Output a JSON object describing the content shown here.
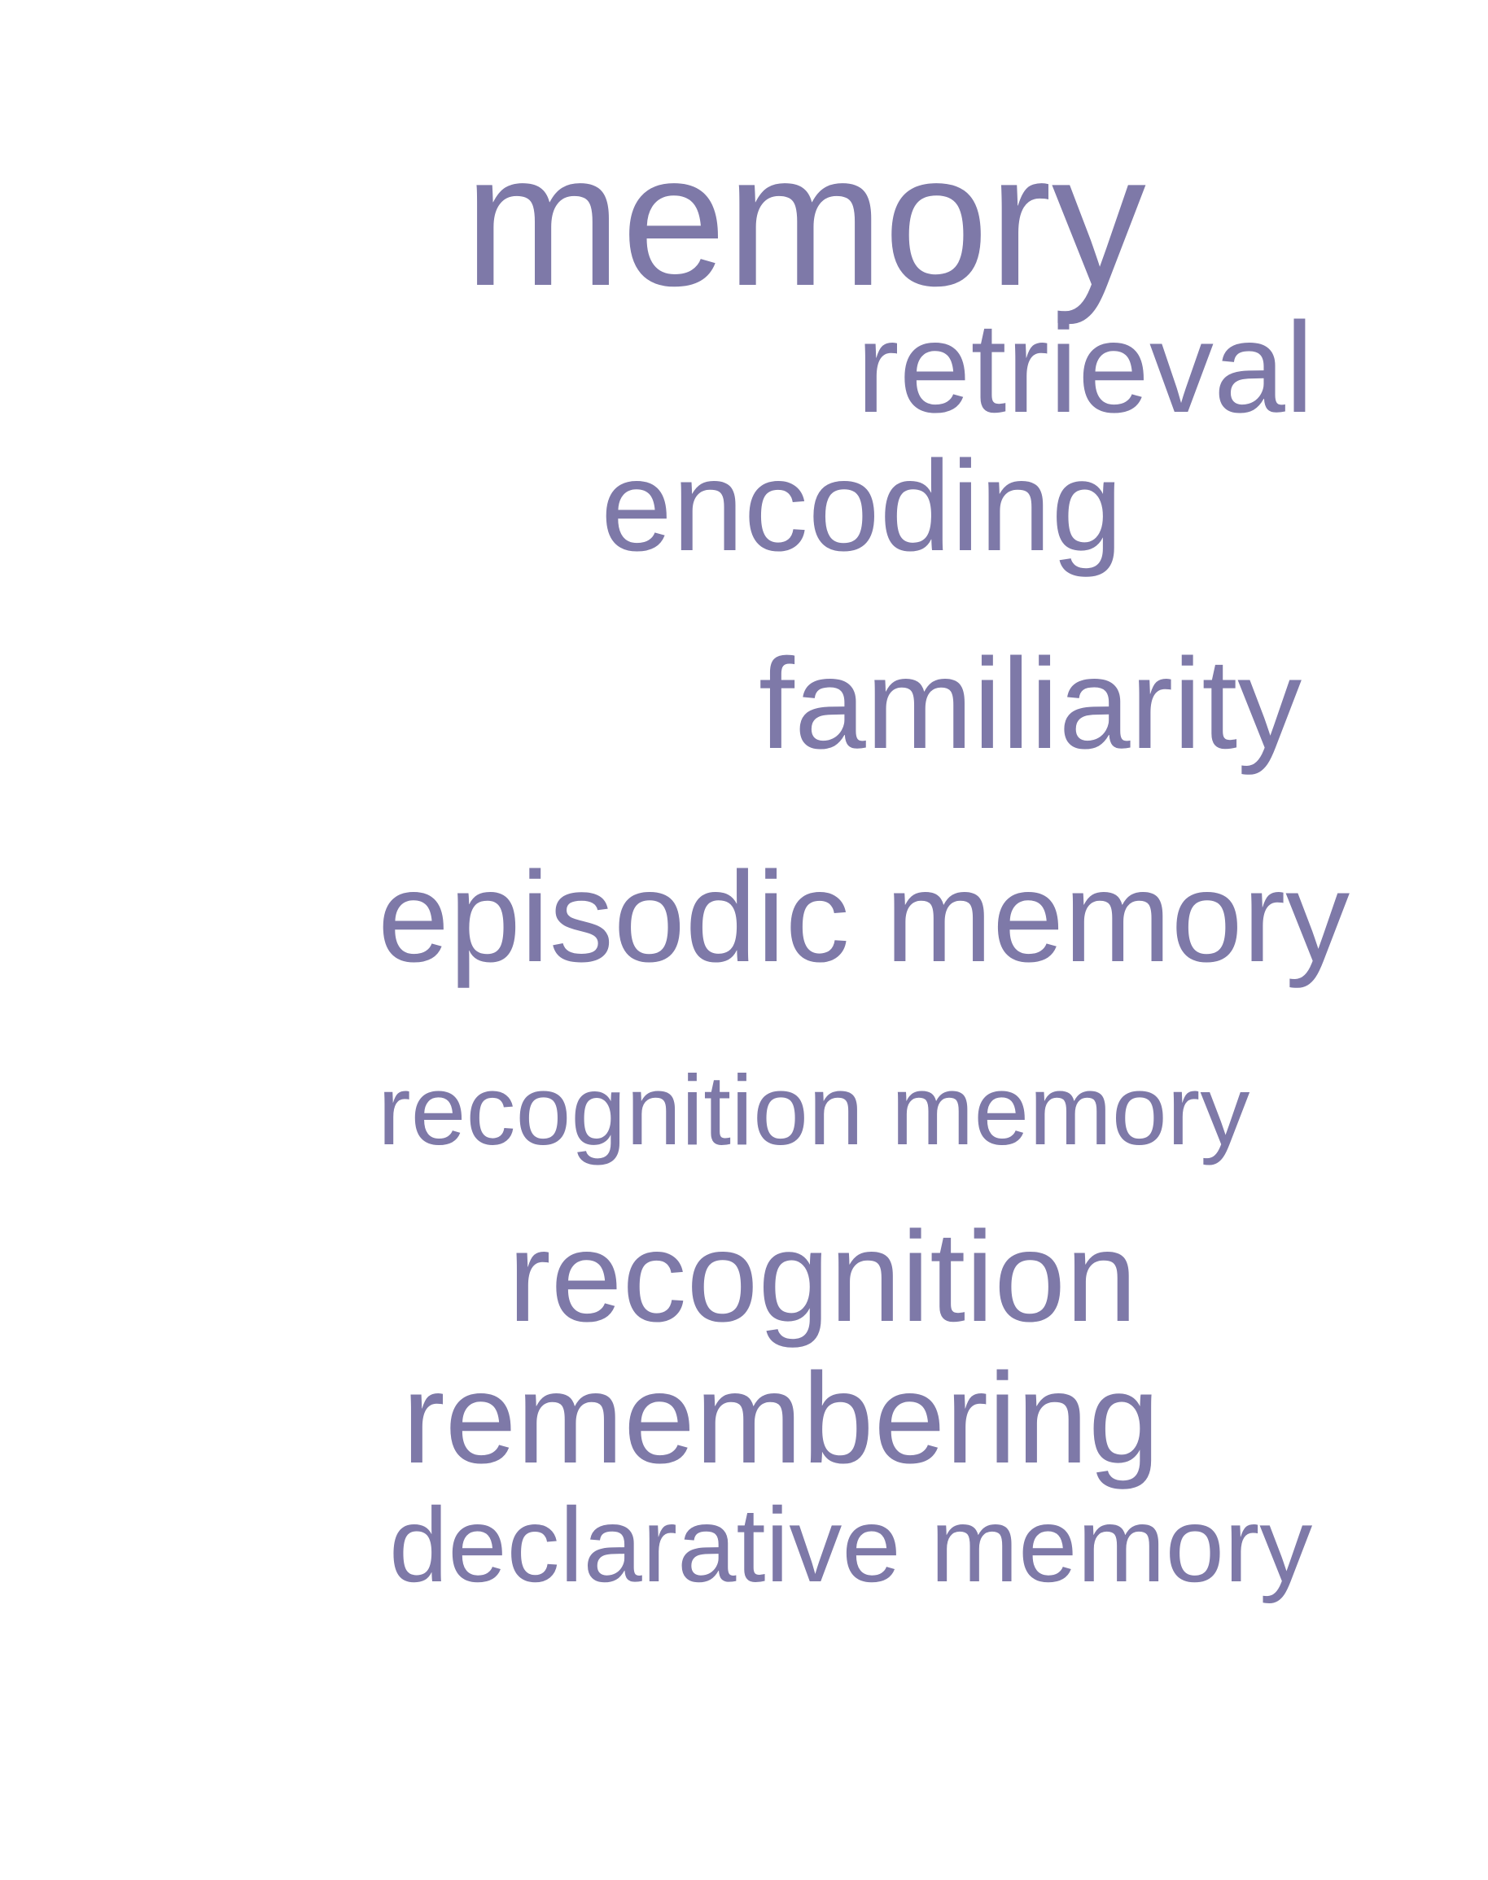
{
  "words": [
    {
      "text": "memory"
    },
    {
      "text": "retrieval"
    },
    {
      "text": "encoding"
    },
    {
      "text": "familiarity"
    },
    {
      "text": "episodic memory"
    },
    {
      "text": "recognition memory"
    },
    {
      "text": "recognition"
    },
    {
      "text": "remembering"
    },
    {
      "text": "declarative memory"
    }
  ],
  "colors": {
    "text": "#7e79a8",
    "background": "#ffffff"
  }
}
